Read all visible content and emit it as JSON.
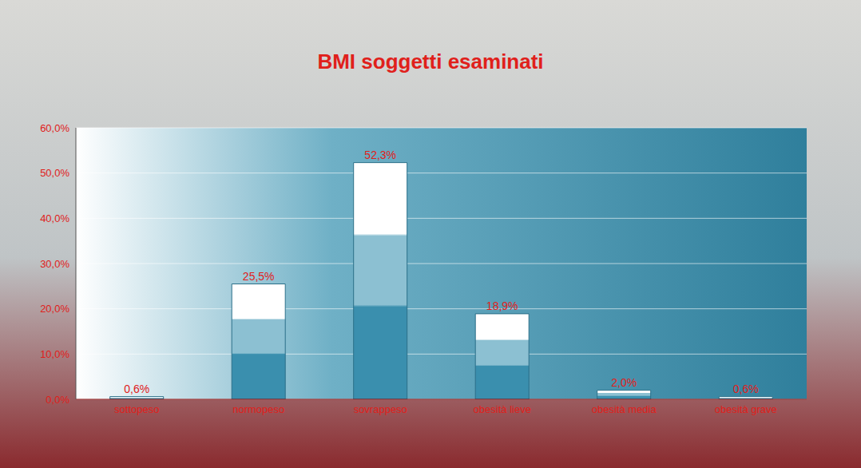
{
  "chart_data": {
    "type": "bar",
    "title": "BMI soggetti esaminati",
    "categories": [
      "sottopeso",
      "normopeso",
      "sovrappeso",
      "obesità lieve",
      "obesità media",
      "obesità grave"
    ],
    "values": [
      0.6,
      25.5,
      52.3,
      18.9,
      2.0,
      0.6
    ],
    "value_labels": [
      "0,6%",
      "25,5%",
      "52,3%",
      "18,9%",
      "2,0%",
      "0,6%"
    ],
    "color": "#3a8fae",
    "ylim": [
      0,
      60
    ],
    "yticks": [
      {
        "value": 0,
        "label": "0,0%"
      },
      {
        "value": 10,
        "label": "10,0%"
      },
      {
        "value": 20,
        "label": "20,0%"
      },
      {
        "value": 30,
        "label": "30,0%"
      },
      {
        "value": 40,
        "label": "40,0%"
      },
      {
        "value": 50,
        "label": "50,0%"
      },
      {
        "value": 60,
        "label": "60,0%"
      }
    ],
    "grid": true,
    "data_labels": true
  }
}
